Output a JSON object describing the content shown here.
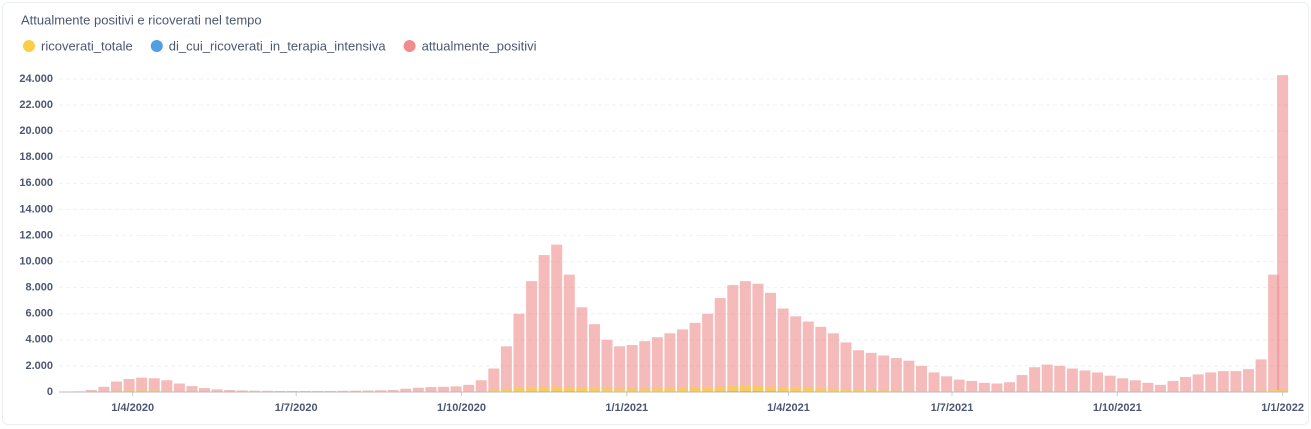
{
  "chart_data": {
    "type": "bar",
    "title": "Attualmente positivi e ricoverati nel tempo",
    "x": [
      "2020-02-24",
      "2020-03-02",
      "2020-03-09",
      "2020-03-16",
      "2020-03-23",
      "2020-03-30",
      "2020-04-06",
      "2020-04-13",
      "2020-04-20",
      "2020-04-27",
      "2020-05-04",
      "2020-05-11",
      "2020-05-18",
      "2020-05-25",
      "2020-06-01",
      "2020-06-08",
      "2020-06-15",
      "2020-06-22",
      "2020-06-29",
      "2020-07-06",
      "2020-07-13",
      "2020-07-20",
      "2020-07-27",
      "2020-08-03",
      "2020-08-10",
      "2020-08-17",
      "2020-08-24",
      "2020-08-31",
      "2020-09-07",
      "2020-09-14",
      "2020-09-21",
      "2020-09-28",
      "2020-10-05",
      "2020-10-12",
      "2020-10-19",
      "2020-10-26",
      "2020-11-02",
      "2020-11-09",
      "2020-11-16",
      "2020-11-23",
      "2020-11-30",
      "2020-12-07",
      "2020-12-14",
      "2020-12-21",
      "2020-12-28",
      "2021-01-04",
      "2021-01-11",
      "2021-01-18",
      "2021-01-25",
      "2021-02-01",
      "2021-02-08",
      "2021-02-15",
      "2021-02-22",
      "2021-03-01",
      "2021-03-08",
      "2021-03-15",
      "2021-03-22",
      "2021-03-29",
      "2021-04-05",
      "2021-04-12",
      "2021-04-19",
      "2021-04-26",
      "2021-05-03",
      "2021-05-10",
      "2021-05-17",
      "2021-05-24",
      "2021-05-31",
      "2021-06-07",
      "2021-06-14",
      "2021-06-21",
      "2021-06-28",
      "2021-07-05",
      "2021-07-12",
      "2021-07-19",
      "2021-07-26",
      "2021-08-02",
      "2021-08-09",
      "2021-08-16",
      "2021-08-23",
      "2021-08-30",
      "2021-09-06",
      "2021-09-13",
      "2021-09-20",
      "2021-09-27",
      "2021-10-04",
      "2021-10-11",
      "2021-10-18",
      "2021-10-25",
      "2021-11-01",
      "2021-11-08",
      "2021-11-15",
      "2021-11-22",
      "2021-11-29",
      "2021-12-06",
      "2021-12-13",
      "2021-12-20",
      "2021-12-27",
      "2022-01-01"
    ],
    "series": [
      {
        "name": "ricoverati_totale",
        "color": "#f9cf48",
        "values": [
          0,
          5,
          20,
          60,
          100,
          120,
          120,
          110,
          90,
          70,
          50,
          35,
          25,
          20,
          15,
          12,
          10,
          8,
          8,
          8,
          8,
          8,
          8,
          8,
          10,
          10,
          12,
          15,
          20,
          25,
          30,
          35,
          45,
          70,
          140,
          250,
          330,
          380,
          400,
          400,
          380,
          350,
          320,
          290,
          270,
          270,
          270,
          280,
          290,
          300,
          320,
          350,
          400,
          440,
          450,
          440,
          410,
          370,
          340,
          310,
          280,
          250,
          210,
          180,
          150,
          130,
          110,
          90,
          70,
          50,
          40,
          30,
          25,
          25,
          30,
          45,
          60,
          70,
          70,
          65,
          60,
          55,
          50,
          45,
          40,
          35,
          30,
          30,
          35,
          45,
          55,
          60,
          65,
          70,
          80,
          100,
          130,
          160
        ]
      },
      {
        "name": "di_cui_ricoverati_in_terapia_intensiva",
        "color": "#509ee3",
        "values": [
          0,
          1,
          4,
          10,
          15,
          18,
          18,
          16,
          13,
          10,
          7,
          5,
          3,
          2,
          2,
          1,
          1,
          1,
          1,
          1,
          1,
          1,
          1,
          1,
          1,
          1,
          2,
          2,
          3,
          3,
          4,
          5,
          6,
          9,
          18,
          30,
          40,
          48,
          52,
          52,
          50,
          46,
          42,
          38,
          35,
          35,
          35,
          36,
          38,
          40,
          42,
          46,
          52,
          58,
          60,
          58,
          55,
          50,
          46,
          42,
          38,
          34,
          28,
          24,
          20,
          17,
          14,
          12,
          9,
          7,
          5,
          4,
          3,
          3,
          4,
          6,
          8,
          9,
          9,
          9,
          8,
          7,
          7,
          6,
          5,
          5,
          4,
          4,
          4,
          6,
          7,
          8,
          8,
          9,
          10,
          13,
          16,
          20
        ]
      },
      {
        "name": "attualmente_positivi",
        "color": "#ef8c8c",
        "values": [
          10,
          50,
          150,
          400,
          800,
          1000,
          1100,
          1050,
          900,
          650,
          450,
          300,
          200,
          150,
          120,
          100,
          90,
          80,
          80,
          80,
          80,
          80,
          90,
          100,
          110,
          130,
          150,
          250,
          330,
          380,
          400,
          430,
          550,
          900,
          1800,
          3500,
          6000,
          8500,
          10500,
          11300,
          9000,
          6500,
          5200,
          4000,
          3500,
          3600,
          3900,
          4200,
          4500,
          4800,
          5300,
          6000,
          7200,
          8200,
          8500,
          8300,
          7600,
          6400,
          5800,
          5400,
          5000,
          4500,
          3800,
          3200,
          3000,
          2800,
          2600,
          2400,
          2000,
          1500,
          1200,
          950,
          850,
          700,
          650,
          750,
          1300,
          1900,
          2100,
          2000,
          1800,
          1650,
          1500,
          1250,
          1050,
          900,
          700,
          550,
          850,
          1150,
          1350,
          1500,
          1600,
          1600,
          1750,
          2500,
          9000,
          24300
        ]
      }
    ],
    "xlim": [
      "2020-02-20",
      "2022-01-04"
    ],
    "xticks": [
      {
        "value": "2020-04-01",
        "label": "1/4/2020"
      },
      {
        "value": "2020-07-01",
        "label": "1/7/2020"
      },
      {
        "value": "2020-10-01",
        "label": "1/10/2020"
      },
      {
        "value": "2021-01-01",
        "label": "1/1/2021"
      },
      {
        "value": "2021-04-01",
        "label": "1/4/2021"
      },
      {
        "value": "2021-07-01",
        "label": "1/7/2021"
      },
      {
        "value": "2021-10-01",
        "label": "1/10/2021"
      },
      {
        "value": "2022-01-01",
        "label": "1/1/2022"
      }
    ],
    "ylim": [
      0,
      24000
    ],
    "yticks": [
      0,
      {
        "value": 2000,
        "label": "2.000"
      },
      {
        "value": 4000,
        "label": "4.000"
      },
      {
        "value": 6000,
        "label": "6.000"
      },
      {
        "value": 8000,
        "label": "8.000"
      },
      {
        "value": 10000,
        "label": "10.000"
      },
      {
        "value": 12000,
        "label": "12.000"
      },
      {
        "value": 14000,
        "label": "14.000"
      },
      {
        "value": 16000,
        "label": "16.000"
      },
      {
        "value": 18000,
        "label": "18.000"
      },
      {
        "value": 20000,
        "label": "20.000"
      },
      {
        "value": 22000,
        "label": "22.000"
      },
      {
        "value": 24000,
        "label": "24.000"
      }
    ],
    "grid": true
  }
}
